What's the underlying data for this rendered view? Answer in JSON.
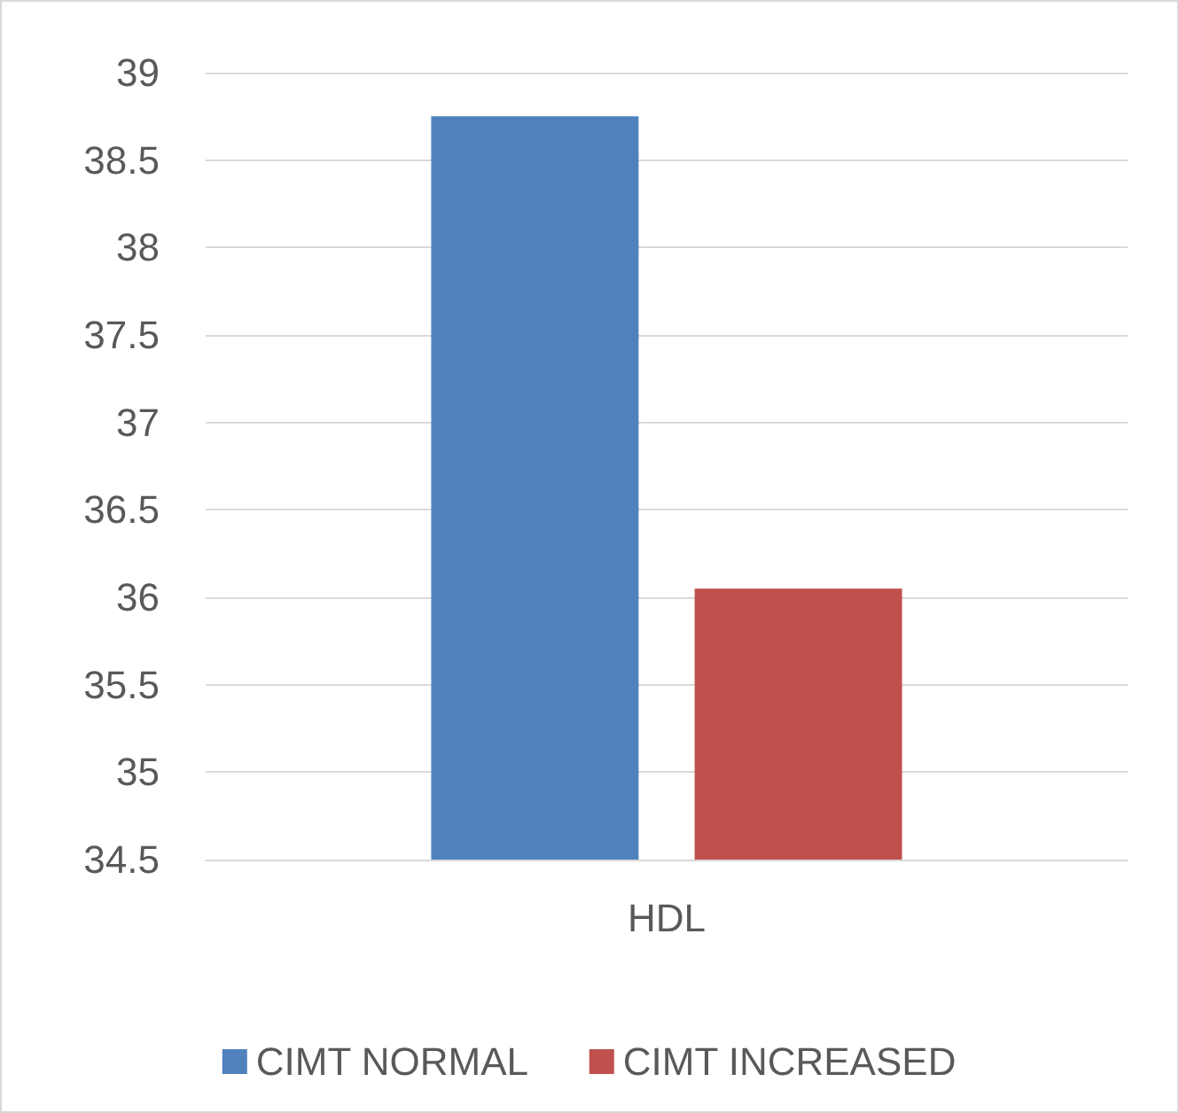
{
  "chart_data": {
    "type": "bar",
    "categories": [
      "HDL"
    ],
    "series": [
      {
        "name": "CIMT NORMAL",
        "color": "#4f81bd",
        "values": [
          38.75
        ]
      },
      {
        "name": "CIMT INCREASED",
        "color": "#c0504d",
        "values": [
          36.05
        ]
      }
    ],
    "ylim": [
      34.5,
      39
    ],
    "yticks": [
      34.5,
      35,
      35.5,
      36,
      36.5,
      37,
      37.5,
      38,
      38.5,
      39
    ],
    "grid": "y",
    "legend": "bottom"
  }
}
